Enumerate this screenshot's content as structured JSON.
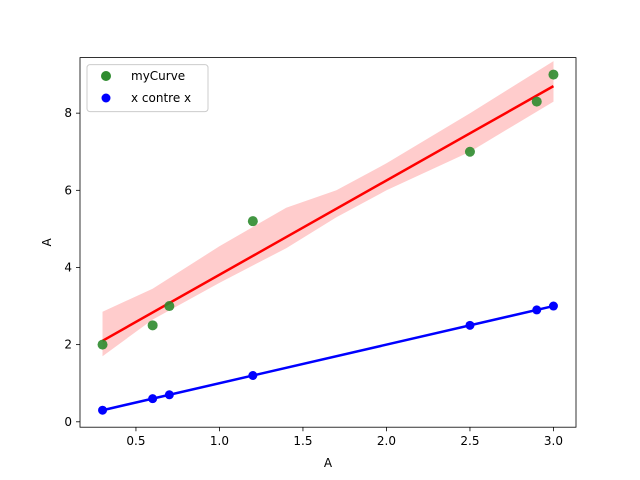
{
  "chart_data": {
    "type": "scatter",
    "xlabel": "A",
    "ylabel": "A",
    "xlim": [
      0.165,
      3.135
    ],
    "ylim": [
      -0.14,
      9.44
    ],
    "xticks": [
      0.5,
      1.0,
      1.5,
      2.0,
      2.5,
      3.0
    ],
    "xtick_labels": [
      "0.5",
      "1.0",
      "1.5",
      "2.0",
      "2.5",
      "3.0"
    ],
    "yticks": [
      0,
      2,
      4,
      6,
      8
    ],
    "ytick_labels": [
      "0",
      "2",
      "4",
      "6",
      "8"
    ],
    "grid": false,
    "legend_position": "upper-left",
    "series": [
      {
        "name": "myCurve",
        "marker_color": "#2e8b2e",
        "fit_color": "#ff0000",
        "band_color": "#ffcccc",
        "points": [
          {
            "x": 0.3,
            "y": 2.0
          },
          {
            "x": 0.6,
            "y": 2.5
          },
          {
            "x": 0.7,
            "y": 3.0
          },
          {
            "x": 1.2,
            "y": 5.2
          },
          {
            "x": 2.5,
            "y": 7.0
          },
          {
            "x": 2.9,
            "y": 8.3
          },
          {
            "x": 3.0,
            "y": 9.0
          }
        ],
        "fit_line": [
          {
            "x": 0.3,
            "y": 2.1
          },
          {
            "x": 3.0,
            "y": 8.7
          }
        ],
        "confidence_band": {
          "x": [
            0.3,
            0.6,
            1.0,
            1.4,
            1.7,
            2.0,
            2.5,
            3.0
          ],
          "upper": [
            2.85,
            3.45,
            4.55,
            5.55,
            6.0,
            6.7,
            8.0,
            9.35
          ],
          "lower": [
            1.7,
            2.65,
            3.6,
            4.5,
            5.3,
            6.0,
            7.0,
            8.3
          ]
        }
      },
      {
        "name": "x contre x",
        "marker_color": "#0000ff",
        "fit_color": "#0000ff",
        "points": [
          {
            "x": 0.3,
            "y": 0.3
          },
          {
            "x": 0.6,
            "y": 0.6
          },
          {
            "x": 0.7,
            "y": 0.7
          },
          {
            "x": 1.2,
            "y": 1.2
          },
          {
            "x": 2.5,
            "y": 2.5
          },
          {
            "x": 2.9,
            "y": 2.9
          },
          {
            "x": 3.0,
            "y": 3.0
          }
        ],
        "fit_line": [
          {
            "x": 0.3,
            "y": 0.3
          },
          {
            "x": 3.0,
            "y": 3.0
          }
        ]
      }
    ]
  }
}
